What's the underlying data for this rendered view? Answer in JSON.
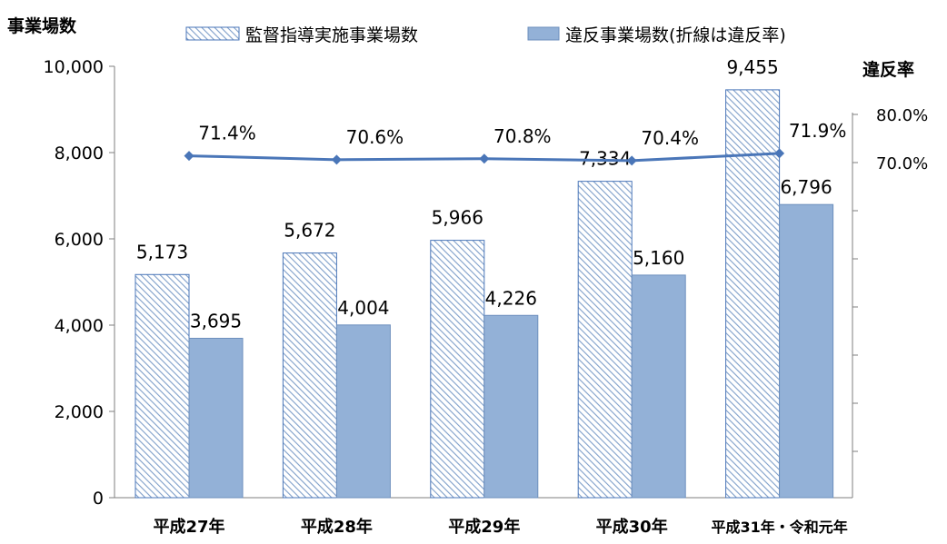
{
  "chart_data": {
    "type": "bar",
    "categories": [
      "平成27年",
      "平成28年",
      "平成29年",
      "平成30年",
      "平成31年・令和元年"
    ],
    "series": [
      {
        "name": "監督指導実施事業場数",
        "values": [
          5173,
          5672,
          5966,
          7334,
          9455
        ],
        "labels": [
          "5,173",
          "5,672",
          "5,966",
          "7,334",
          "9,455"
        ],
        "pattern": "diagonal-hatch",
        "color": "#7f9fc9"
      },
      {
        "name": "違反事業場数(折線は違反率)",
        "values": [
          3695,
          4004,
          4226,
          5160,
          6796
        ],
        "labels": [
          "3,695",
          "4,004",
          "4,226",
          "5,160",
          "6,796"
        ],
        "color": "#93b1d7"
      }
    ],
    "line": {
      "name": "違反率",
      "values": [
        71.4,
        70.6,
        70.8,
        70.4,
        71.9
      ],
      "labels": [
        "71.4%",
        "70.6%",
        "70.8%",
        "70.4%",
        "71.9%"
      ],
      "color": "#4a76b8"
    },
    "ylabel": "事業場数",
    "ylim": [
      0,
      10000
    ],
    "yticks": [
      "0",
      "2,000",
      "4,000",
      "6,000",
      "8,000",
      "10,000"
    ],
    "y2label": "違反率",
    "y2ticks": [
      "70.0%",
      "80.0%"
    ],
    "legend_position": "top",
    "grid": false
  }
}
